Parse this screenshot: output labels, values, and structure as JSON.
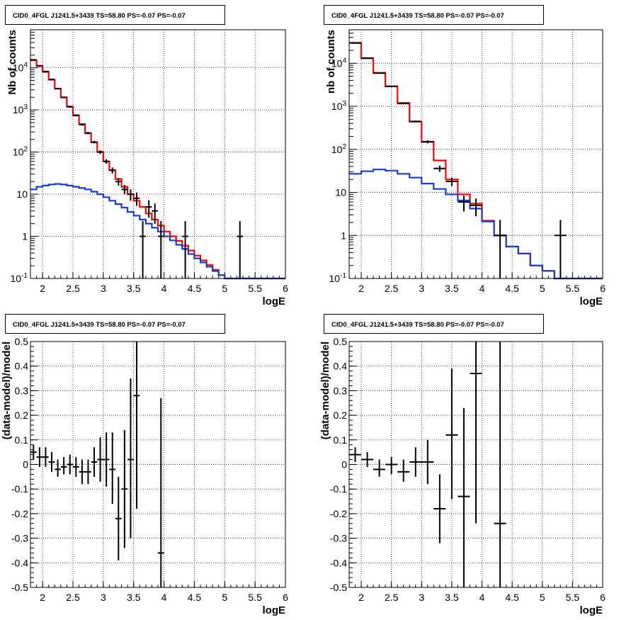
{
  "colors": {
    "data": "#000000",
    "model": "#ff0000",
    "background": "#1a3ccc",
    "grid": "#000000"
  },
  "chart_data": [
    {
      "type": "line",
      "title": "CID0_4FGL J1241.5+3439 TS=58.80 PS=-0.07 PS=-0.07",
      "xlabel": "logE",
      "ylabel": "Nb of counts",
      "xlim": [
        1.8,
        6
      ],
      "ylim": [
        0.1,
        80000
      ],
      "yscale": "log",
      "grid": true,
      "x_ticks": [
        "2",
        "2.5",
        "3",
        "3.5",
        "4",
        "4.5",
        "5",
        "5.5",
        "6"
      ],
      "y_ticks": [
        "10^-1",
        "1",
        "10",
        "10^2",
        "10^3",
        "10^4"
      ],
      "bin_edges": [
        1.8,
        1.9,
        2.0,
        2.1,
        2.2,
        2.3,
        2.4,
        2.5,
        2.6,
        2.7,
        2.8,
        2.9,
        3.0,
        3.1,
        3.2,
        3.3,
        3.4,
        3.5,
        3.6,
        3.7,
        3.8,
        3.9,
        4.0,
        4.1,
        4.2,
        4.3,
        4.4,
        4.5,
        4.6,
        4.7,
        4.8,
        4.9,
        5.0,
        5.1,
        5.2,
        5.3,
        5.4,
        5.5,
        5.6,
        5.7,
        5.8,
        5.9,
        6.0
      ],
      "series": [
        {
          "name": "",
          "color": "#ff0000",
          "values": [
            15000,
            11000,
            8000,
            5200,
            3200,
            2000,
            1200,
            750,
            460,
            280,
            170,
            100,
            60,
            37,
            23,
            15,
            10,
            7,
            5,
            3.5,
            2.5,
            1.8,
            1.3,
            1.0,
            0.78,
            0.6,
            0.46,
            0.35,
            0.27,
            0.21,
            0.16,
            0.12,
            0.1,
            0.1,
            0.1,
            0.1,
            0.1,
            0.1,
            0.1,
            0.1,
            0.1,
            0.1
          ]
        },
        {
          "name": "",
          "color": "#1a3ccc",
          "values": [
            13,
            15,
            16,
            17,
            17.5,
            17,
            16,
            15,
            14,
            13,
            11.5,
            10,
            8.5,
            7,
            5.8,
            4.8,
            3.8,
            3.1,
            2.5,
            2.0,
            1.6,
            1.3,
            1.0,
            0.8,
            0.63,
            0.5,
            0.38,
            0.3,
            0.24,
            0.19,
            0.15,
            0.12,
            0.1,
            0.1,
            0.1,
            0.1,
            0.1,
            0.1,
            0.1,
            0.1,
            0.1,
            0.1
          ]
        }
      ],
      "points": [
        {
          "x": 1.85,
          "y": 15500,
          "xerr": 0.05,
          "ylo": 15300,
          "yhi": 15700
        },
        {
          "x": 1.95,
          "y": 11200,
          "xerr": 0.05,
          "ylo": 11000,
          "yhi": 11400
        },
        {
          "x": 2.05,
          "y": 8200,
          "xerr": 0.05,
          "ylo": 8000,
          "yhi": 8400
        },
        {
          "x": 2.15,
          "y": 5300,
          "xerr": 0.05,
          "ylo": 5150,
          "yhi": 5450
        },
        {
          "x": 2.25,
          "y": 3200,
          "xerr": 0.05,
          "ylo": 3100,
          "yhi": 3300
        },
        {
          "x": 2.35,
          "y": 1980,
          "xerr": 0.05,
          "ylo": 1900,
          "yhi": 2060
        },
        {
          "x": 2.45,
          "y": 1190,
          "xerr": 0.05,
          "ylo": 1130,
          "yhi": 1250
        },
        {
          "x": 2.55,
          "y": 740,
          "xerr": 0.05,
          "ylo": 700,
          "yhi": 780
        },
        {
          "x": 2.65,
          "y": 450,
          "xerr": 0.05,
          "ylo": 420,
          "yhi": 480
        },
        {
          "x": 2.75,
          "y": 282,
          "xerr": 0.05,
          "ylo": 265,
          "yhi": 300
        },
        {
          "x": 2.85,
          "y": 172,
          "xerr": 0.05,
          "ylo": 160,
          "yhi": 185
        },
        {
          "x": 2.95,
          "y": 101,
          "xerr": 0.05,
          "ylo": 91,
          "yhi": 111
        },
        {
          "x": 3.05,
          "y": 60,
          "xerr": 0.05,
          "ylo": 53,
          "yhi": 68
        },
        {
          "x": 3.15,
          "y": 37,
          "xerr": 0.05,
          "ylo": 31,
          "yhi": 43
        },
        {
          "x": 3.25,
          "y": 20,
          "xerr": 0.05,
          "ylo": 16,
          "yhi": 24
        },
        {
          "x": 3.35,
          "y": 13,
          "xerr": 0.05,
          "ylo": 10,
          "yhi": 16.5
        },
        {
          "x": 3.45,
          "y": 10,
          "xerr": 0.05,
          "ylo": 7,
          "yhi": 13
        },
        {
          "x": 3.55,
          "y": 8,
          "xerr": 0.05,
          "ylo": 5.3,
          "yhi": 11
        },
        {
          "x": 3.65,
          "y": 1,
          "xerr": 0.05,
          "ylo": 0.1,
          "yhi": 2.3
        },
        {
          "x": 3.75,
          "y": 5,
          "xerr": 0.05,
          "ylo": 2.8,
          "yhi": 7.2
        },
        {
          "x": 3.85,
          "y": 4,
          "xerr": 0.05,
          "ylo": 2,
          "yhi": 6
        },
        {
          "x": 3.95,
          "y": 1,
          "xerr": 0.05,
          "ylo": 0.1,
          "yhi": 2.3
        },
        {
          "x": 4.35,
          "y": 1,
          "xerr": 0.05,
          "ylo": 0.1,
          "yhi": 2.3
        },
        {
          "x": 5.25,
          "y": 1,
          "xerr": 0.05,
          "ylo": 0.1,
          "yhi": 2.3
        }
      ]
    },
    {
      "type": "line",
      "title": "CID0_4FGL J1241.5+3439 TS=58.80 PS=-0.07 PS=-0.07",
      "xlabel": "logE",
      "ylabel": "nb of counts",
      "xlim": [
        1.8,
        6
      ],
      "ylim": [
        0.1,
        60000
      ],
      "yscale": "log",
      "grid": true,
      "x_ticks": [
        "2",
        "2.5",
        "3",
        "3.5",
        "4",
        "4.5",
        "5",
        "5.5",
        "6"
      ],
      "y_ticks": [
        "10^-1",
        "1",
        "10",
        "10^2",
        "10^3",
        "10^4"
      ],
      "bin_edges": [
        1.8,
        2.0,
        2.2,
        2.4,
        2.6,
        2.8,
        3.0,
        3.2,
        3.4,
        3.6,
        3.8,
        4.0,
        4.2,
        4.4,
        4.6,
        4.8,
        5.0,
        5.2,
        5.4,
        5.6,
        5.8,
        6.0
      ],
      "series": [
        {
          "name": "",
          "color": "#ff0000",
          "values": [
            30000,
            13000,
            6000,
            2900,
            1200,
            440,
            150,
            55,
            20,
            9,
            5.5,
            2.2,
            1.0,
            0.55,
            0.38,
            0.2,
            0.15,
            0.1,
            0.1,
            0.1,
            0.1
          ]
        },
        {
          "name": "",
          "color": "#1a3ccc",
          "values": [
            27,
            31,
            34,
            32,
            27,
            22,
            16,
            12,
            9,
            6.5,
            4.2,
            2.1,
            1.0,
            0.55,
            0.38,
            0.2,
            0.15,
            0.1,
            0.1,
            0.1,
            0.1
          ]
        }
      ],
      "points": [
        {
          "x": 1.9,
          "y": 29500,
          "xerr": 0.1,
          "ylo": 29200,
          "yhi": 29800
        },
        {
          "x": 2.1,
          "y": 13200,
          "xerr": 0.1,
          "ylo": 13000,
          "yhi": 13400
        },
        {
          "x": 2.3,
          "y": 5900,
          "xerr": 0.1,
          "ylo": 5750,
          "yhi": 6050
        },
        {
          "x": 2.5,
          "y": 2900,
          "xerr": 0.1,
          "ylo": 2800,
          "yhi": 3000
        },
        {
          "x": 2.7,
          "y": 1160,
          "xerr": 0.1,
          "ylo": 1120,
          "yhi": 1200
        },
        {
          "x": 2.9,
          "y": 445,
          "xerr": 0.1,
          "ylo": 420,
          "yhi": 470
        },
        {
          "x": 3.1,
          "y": 150,
          "xerr": 0.1,
          "ylo": 138,
          "yhi": 162
        },
        {
          "x": 3.3,
          "y": 36,
          "xerr": 0.1,
          "ylo": 30,
          "yhi": 42
        },
        {
          "x": 3.5,
          "y": 18,
          "xerr": 0.1,
          "ylo": 14,
          "yhi": 22
        },
        {
          "x": 3.7,
          "y": 6,
          "xerr": 0.1,
          "ylo": 3.6,
          "yhi": 8.4
        },
        {
          "x": 3.9,
          "y": 5,
          "xerr": 0.1,
          "ylo": 2.8,
          "yhi": 7.2
        },
        {
          "x": 4.3,
          "y": 1,
          "xerr": 0.1,
          "ylo": 0.1,
          "yhi": 2.3
        },
        {
          "x": 5.3,
          "y": 1,
          "xerr": 0.1,
          "ylo": 0.1,
          "yhi": 2.3
        }
      ]
    },
    {
      "type": "scatter",
      "title": "CID0_4FGL J1241.5+3439 TS=58.80 PS=-0.07 PS=-0.07",
      "xlabel": "logE",
      "ylabel": "(data-model)/model",
      "xlim": [
        1.8,
        6
      ],
      "ylim": [
        -0.5,
        0.5
      ],
      "grid": true,
      "x_ticks": [
        "2",
        "2.5",
        "3",
        "3.5",
        "4",
        "4.5",
        "5",
        "5.5",
        "6"
      ],
      "y_ticks": [
        "-0.5",
        "-0.4",
        "-0.3",
        "-0.2",
        "-0.1",
        "0",
        "0.1",
        "0.2",
        "0.3",
        "0.4",
        "0.5"
      ],
      "points": [
        {
          "x": 1.85,
          "y": 0.05,
          "xerr": 0.05,
          "ylo": 0.02,
          "yhi": 0.08
        },
        {
          "x": 1.95,
          "y": 0.03,
          "xerr": 0.05,
          "ylo": -0.01,
          "yhi": 0.07
        },
        {
          "x": 2.05,
          "y": 0.03,
          "xerr": 0.05,
          "ylo": -0.01,
          "yhi": 0.07
        },
        {
          "x": 2.15,
          "y": 0.01,
          "xerr": 0.05,
          "ylo": -0.03,
          "yhi": 0.05
        },
        {
          "x": 2.25,
          "y": -0.02,
          "xerr": 0.05,
          "ylo": -0.05,
          "yhi": 0.02
        },
        {
          "x": 2.35,
          "y": -0.01,
          "xerr": 0.05,
          "ylo": -0.04,
          "yhi": 0.03
        },
        {
          "x": 2.45,
          "y": 0.0,
          "xerr": 0.05,
          "ylo": -0.04,
          "yhi": 0.04
        },
        {
          "x": 2.55,
          "y": -0.01,
          "xerr": 0.05,
          "ylo": -0.05,
          "yhi": 0.03
        },
        {
          "x": 2.65,
          "y": -0.03,
          "xerr": 0.05,
          "ylo": -0.08,
          "yhi": 0.02
        },
        {
          "x": 2.75,
          "y": -0.03,
          "xerr": 0.05,
          "ylo": -0.08,
          "yhi": 0.02
        },
        {
          "x": 2.85,
          "y": 0.01,
          "xerr": 0.05,
          "ylo": -0.05,
          "yhi": 0.07
        },
        {
          "x": 2.95,
          "y": 0.02,
          "xerr": 0.05,
          "ylo": -0.07,
          "yhi": 0.11
        },
        {
          "x": 3.05,
          "y": 0.02,
          "xerr": 0.05,
          "ylo": -0.09,
          "yhi": 0.13
        },
        {
          "x": 3.15,
          "y": -0.02,
          "xerr": 0.05,
          "ylo": -0.16,
          "yhi": 0.13
        },
        {
          "x": 3.25,
          "y": -0.22,
          "xerr": 0.05,
          "ylo": -0.39,
          "yhi": -0.05
        },
        {
          "x": 3.35,
          "y": -0.1,
          "xerr": 0.05,
          "ylo": -0.34,
          "yhi": 0.14
        },
        {
          "x": 3.45,
          "y": 0.02,
          "xerr": 0.05,
          "ylo": -0.3,
          "yhi": 0.35
        },
        {
          "x": 3.55,
          "y": 0.28,
          "xerr": 0.05,
          "ylo": -0.18,
          "yhi": 0.5
        },
        {
          "x": 3.95,
          "y": -0.36,
          "xerr": 0.05,
          "ylo": -0.5,
          "yhi": 0.27
        }
      ]
    },
    {
      "type": "scatter",
      "title": "CID0_4FGL J1241.5+3439 TS=58.80 PS=-0.07 PS=-0.07",
      "xlabel": "logE",
      "ylabel": "(data-model)/model",
      "xlim": [
        1.8,
        6
      ],
      "ylim": [
        -0.5,
        0.5
      ],
      "grid": true,
      "x_ticks": [
        "2",
        "2.5",
        "3",
        "3.5",
        "4",
        "4.5",
        "5",
        "5.5",
        "6"
      ],
      "y_ticks": [
        "-0.5",
        "-0.4",
        "-0.3",
        "-0.2",
        "-0.1",
        "0",
        "0.1",
        "0.2",
        "0.3",
        "0.4",
        "0.5"
      ],
      "points": [
        {
          "x": 1.9,
          "y": 0.04,
          "xerr": 0.1,
          "ylo": 0.01,
          "yhi": 0.07
        },
        {
          "x": 2.1,
          "y": 0.02,
          "xerr": 0.1,
          "ylo": -0.01,
          "yhi": 0.05
        },
        {
          "x": 2.3,
          "y": -0.02,
          "xerr": 0.1,
          "ylo": -0.05,
          "yhi": 0.02
        },
        {
          "x": 2.5,
          "y": 0.0,
          "xerr": 0.1,
          "ylo": -0.04,
          "yhi": 0.03
        },
        {
          "x": 2.7,
          "y": -0.03,
          "xerr": 0.1,
          "ylo": -0.07,
          "yhi": 0.02
        },
        {
          "x": 2.9,
          "y": 0.01,
          "xerr": 0.1,
          "ylo": -0.05,
          "yhi": 0.07
        },
        {
          "x": 3.1,
          "y": 0.01,
          "xerr": 0.1,
          "ylo": -0.08,
          "yhi": 0.1
        },
        {
          "x": 3.3,
          "y": -0.18,
          "xerr": 0.1,
          "ylo": -0.32,
          "yhi": -0.04
        },
        {
          "x": 3.5,
          "y": 0.12,
          "xerr": 0.1,
          "ylo": -0.14,
          "yhi": 0.39
        },
        {
          "x": 3.7,
          "y": -0.13,
          "xerr": 0.1,
          "ylo": -0.5,
          "yhi": 0.23
        },
        {
          "x": 3.9,
          "y": 0.37,
          "xerr": 0.1,
          "ylo": -0.24,
          "yhi": 0.5
        },
        {
          "x": 4.3,
          "y": -0.24,
          "xerr": 0.1,
          "ylo": -0.5,
          "yhi": 0.5
        }
      ]
    }
  ]
}
